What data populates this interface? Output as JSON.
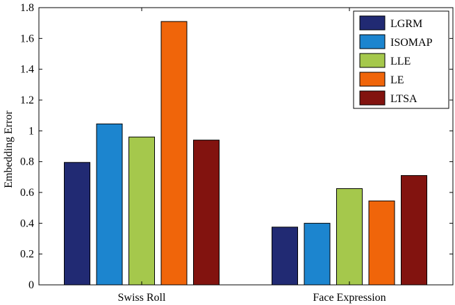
{
  "chart_data": {
    "type": "bar",
    "title": "",
    "xlabel": "",
    "ylabel": "Embedding Error",
    "categories": [
      "Swiss Roll",
      "Face Expression"
    ],
    "ylim": [
      0,
      1.8
    ],
    "yticks": [
      "0",
      "0.2",
      "0.4",
      "0.6",
      "0.8",
      "1",
      "1.2",
      "1.4",
      "1.6",
      "1.8"
    ],
    "grid": false,
    "legend_position": "top-right",
    "series": [
      {
        "name": "LGRM",
        "color": "#212a73",
        "values": [
          0.795,
          0.375
        ]
      },
      {
        "name": "ISOMAP",
        "color": "#1c85cf",
        "values": [
          1.045,
          0.4
        ]
      },
      {
        "name": "LLE",
        "color": "#a5c84c",
        "values": [
          0.96,
          0.625
        ]
      },
      {
        "name": "LE",
        "color": "#f0650a",
        "values": [
          1.71,
          0.545
        ]
      },
      {
        "name": "LTSA",
        "color": "#82130f",
        "values": [
          0.94,
          0.71
        ]
      }
    ]
  }
}
